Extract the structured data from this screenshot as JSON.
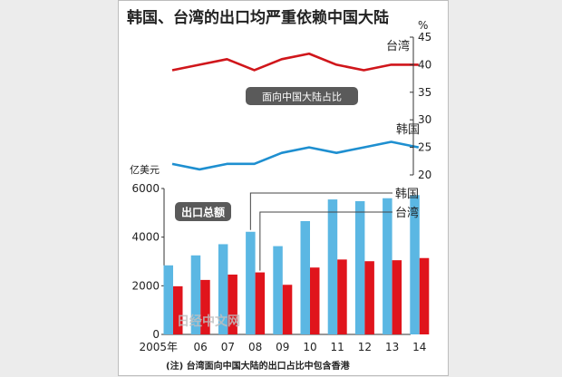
{
  "title": "韩国、台湾的出口均严重依赖中国大陆",
  "share_label": "面向中国大陆占比",
  "export_label": "出口总额",
  "footnote": "(注) 台湾面向中国大陆的出口占比中包含香港",
  "watermark": "日经中文网",
  "colors": {
    "korea_bar": "#5bb7e3",
    "taiwan_bar": "#e0141c",
    "taiwan_line": "#d0161b",
    "korea_line": "#1e8fd0",
    "label_box": "#5a5a5a"
  },
  "chart_data": [
    {
      "type": "line",
      "categories": [
        "2005年",
        "06",
        "07",
        "08",
        "09",
        "10",
        "11",
        "12",
        "13",
        "14"
      ],
      "y_axis_unit": "%",
      "ylim": [
        20,
        45
      ],
      "yticks": [
        20,
        25,
        30,
        35,
        40,
        45
      ],
      "series": [
        {
          "name": "台湾",
          "values": [
            39,
            40,
            41,
            39,
            41,
            42,
            40,
            39,
            40,
            40
          ]
        },
        {
          "name": "韩国",
          "values": [
            22,
            21,
            22,
            22,
            24,
            25,
            24,
            25,
            26,
            25
          ]
        }
      ]
    },
    {
      "type": "bar",
      "categories": [
        "2005年",
        "06",
        "07",
        "08",
        "09",
        "10",
        "11",
        "12",
        "13",
        "14"
      ],
      "y_axis_unit": "亿美元",
      "ylim": [
        0,
        6000
      ],
      "yticks": [
        0,
        2000,
        4000,
        6000
      ],
      "series": [
        {
          "name": "韩国",
          "values": [
            2840,
            3250,
            3710,
            4220,
            3630,
            4660,
            5550,
            5480,
            5600,
            5730
          ]
        },
        {
          "name": "台湾",
          "values": [
            1980,
            2240,
            2460,
            2550,
            2040,
            2750,
            3080,
            3010,
            3050,
            3140
          ]
        }
      ]
    }
  ]
}
